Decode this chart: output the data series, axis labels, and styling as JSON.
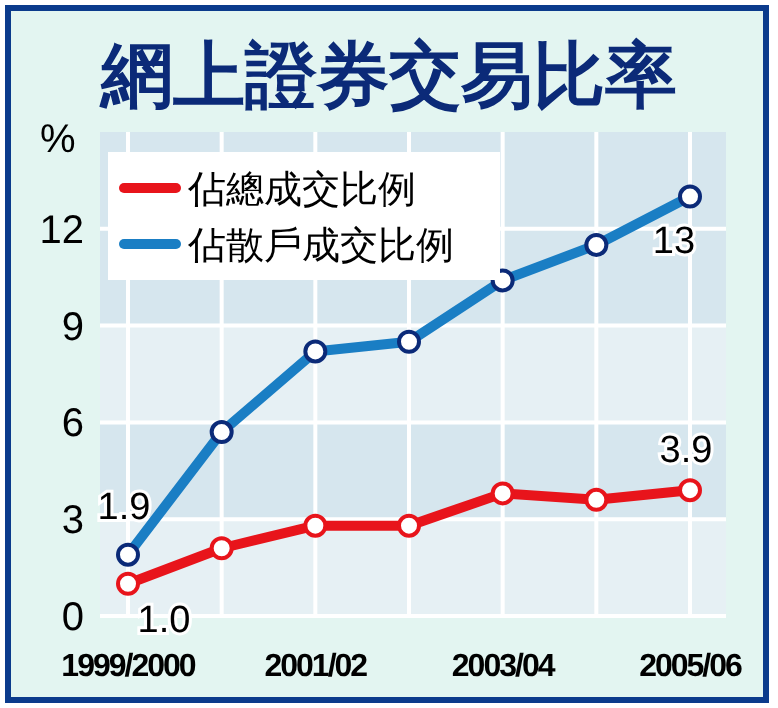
{
  "chart_data": {
    "type": "line",
    "title": "網上證券交易比率",
    "ylabel": "%",
    "categories": [
      "1999/2000",
      null,
      "2001/02",
      null,
      "2003/04",
      null,
      "2005/06"
    ],
    "series": [
      {
        "name": "佔總成交比例",
        "color": "#e8141b",
        "values": [
          1.0,
          2.1,
          2.8,
          2.8,
          3.8,
          3.6,
          3.9
        ],
        "value_labels": [
          "1.0",
          null,
          null,
          null,
          null,
          null,
          "3.9"
        ]
      },
      {
        "name": "佔散戶成交比例",
        "color": "#1a7ec4",
        "values": [
          1.9,
          5.7,
          8.2,
          8.5,
          10.4,
          11.5,
          13
        ],
        "value_labels": [
          "1.9",
          null,
          null,
          null,
          null,
          null,
          "13"
        ]
      }
    ],
    "ylim": [
      0,
      15
    ],
    "yticks": [
      0,
      3,
      6,
      9,
      12
    ],
    "grid": true,
    "legend": "top left",
    "marker": "circle",
    "line_style": "solid"
  }
}
